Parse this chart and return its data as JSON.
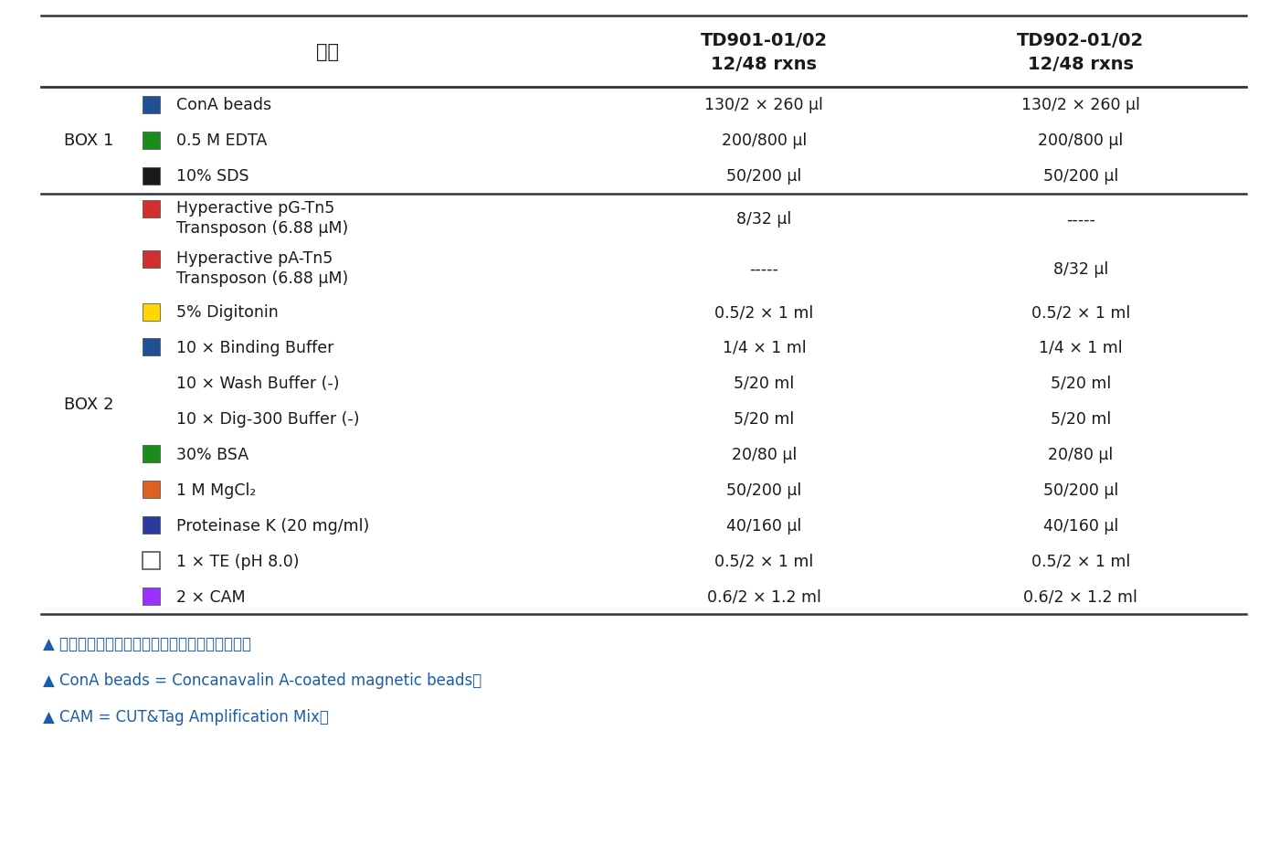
{
  "header_col0": "组分",
  "header_col1_line1": "TD901-01/02",
  "header_col1_line2": "12/48 rxns",
  "header_col2_line1": "TD902-01/02",
  "header_col2_line2": "12/48 rxns",
  "box1_label": "BOX 1",
  "box2_label": "BOX 2",
  "rows": [
    {
      "box": "BOX 1",
      "color": "#1F5098",
      "color_type": "filled",
      "name_line1": "ConA beads",
      "name_line2": "",
      "td901": "130/2 × 260 μl",
      "td902": "130/2 × 260 μl"
    },
    {
      "box": "BOX 1",
      "color": "#1A8C1A",
      "color_type": "filled",
      "name_line1": "0.5 M EDTA",
      "name_line2": "",
      "td901": "200/800 μl",
      "td902": "200/800 μl"
    },
    {
      "box": "BOX 1",
      "color": "#1A1A1A",
      "color_type": "filled",
      "name_line1": "10% SDS",
      "name_line2": "",
      "td901": "50/200 μl",
      "td902": "50/200 μl"
    },
    {
      "box": "BOX 2",
      "color": "#D32F2F",
      "color_type": "filled",
      "name_line1": "Hyperactive pG-Tn5",
      "name_line2": "Transposon (6.88 μM)",
      "td901": "8/32 μl",
      "td902": "-----"
    },
    {
      "box": "BOX 2",
      "color": "#D32F2F",
      "color_type": "filled",
      "name_line1": "Hyperactive pA-Tn5",
      "name_line2": "Transposon (6.88 μM)",
      "td901": "-----",
      "td902": "8/32 μl"
    },
    {
      "box": "BOX 2",
      "color": "#FFD700",
      "color_type": "filled",
      "name_line1": "5% Digitonin",
      "name_line2": "",
      "td901": "0.5/2 × 1 ml",
      "td902": "0.5/2 × 1 ml"
    },
    {
      "box": "BOX 2",
      "color": "#1F5098",
      "color_type": "filled",
      "name_line1": "10 × Binding Buffer",
      "name_line2": "",
      "td901": "1/4 × 1 ml",
      "td902": "1/4 × 1 ml"
    },
    {
      "box": "BOX 2",
      "color": "none",
      "color_type": "none",
      "name_line1": "10 × Wash Buffer (-)",
      "name_line2": "",
      "td901": "5/20 ml",
      "td902": "5/20 ml"
    },
    {
      "box": "BOX 2",
      "color": "none",
      "color_type": "none",
      "name_line1": "10 × Dig-300 Buffer (-)",
      "name_line2": "",
      "td901": "5/20 ml",
      "td902": "5/20 ml"
    },
    {
      "box": "BOX 2",
      "color": "#1A8C1A",
      "color_type": "filled",
      "name_line1": "30% BSA",
      "name_line2": "",
      "td901": "20/80 μl",
      "td902": "20/80 μl"
    },
    {
      "box": "BOX 2",
      "color": "#E06020",
      "color_type": "filled",
      "name_line1": "1 M MgCl₂",
      "name_line2": "",
      "td901": "50/200 μl",
      "td902": "50/200 μl"
    },
    {
      "box": "BOX 2",
      "color": "#2B3A9E",
      "color_type": "filled",
      "name_line1": "Proteinase K (20 mg/ml)",
      "name_line2": "",
      "td901": "40/160 μl",
      "td902": "40/160 μl"
    },
    {
      "box": "BOX 2",
      "color": "#FFFFFF",
      "color_type": "outline",
      "name_line1": "1 × TE (pH 8.0)",
      "name_line2": "",
      "td901": "0.5/2 × 1 ml",
      "td902": "0.5/2 × 1 ml"
    },
    {
      "box": "BOX 2",
      "color": "#9B30FF",
      "color_type": "filled",
      "name_line1": "2 × CAM",
      "name_line2": "",
      "td901": "0.6/2 × 1.2 ml",
      "td902": "0.6/2 × 1.2 ml"
    }
  ],
  "footnotes": [
    "▲ 产品组分表中标注的颜色代表各组分管盖颜色。",
    "▲ ConA beads = Concanavalin A-coated magnetic beads。",
    "▲ CAM = CUT&Tag Amplification Mix。"
  ],
  "footnote_color": "#1A5DAA",
  "bg_color": "#FFFFFF",
  "line_color": "#333333",
  "text_color": "#1A1A1A",
  "box_label_color": "#1A1A1A",
  "fig_width": 13.89,
  "fig_height": 9.28,
  "dpi": 100
}
